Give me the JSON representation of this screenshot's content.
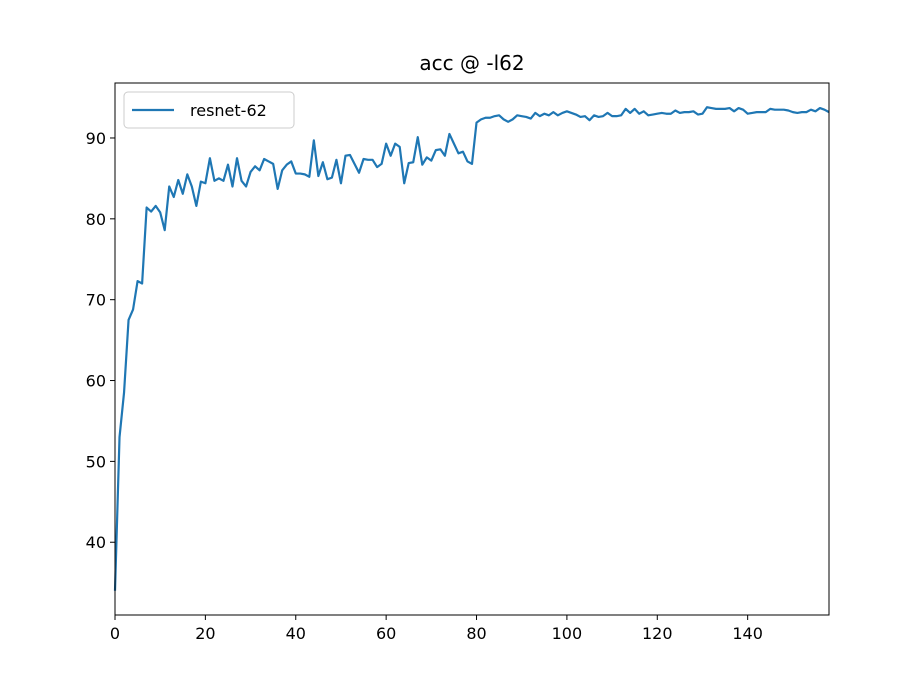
{
  "chart_data": {
    "type": "line",
    "title": "acc @ -l62",
    "xlabel": "",
    "ylabel": "",
    "xlim": [
      0,
      158
    ],
    "ylim": [
      31,
      96.8
    ],
    "xticks": [
      0,
      20,
      40,
      60,
      80,
      100,
      120,
      140
    ],
    "yticks": [
      40,
      50,
      60,
      70,
      80,
      90
    ],
    "grid": false,
    "legend_position": "upper-left",
    "series": [
      {
        "name": "resnet-62",
        "color": "#1f77b4",
        "x": [
          0,
          1,
          2,
          3,
          4,
          5,
          6,
          7,
          8,
          9,
          10,
          11,
          12,
          13,
          14,
          15,
          16,
          17,
          18,
          19,
          20,
          21,
          22,
          23,
          24,
          25,
          26,
          27,
          28,
          29,
          30,
          31,
          32,
          33,
          34,
          35,
          36,
          37,
          38,
          39,
          40,
          41,
          42,
          43,
          44,
          45,
          46,
          47,
          48,
          49,
          50,
          51,
          52,
          53,
          54,
          55,
          56,
          57,
          58,
          59,
          60,
          61,
          62,
          63,
          64,
          65,
          66,
          67,
          68,
          69,
          70,
          71,
          72,
          73,
          74,
          75,
          76,
          77,
          78,
          79,
          80,
          81,
          82,
          83,
          84,
          85,
          86,
          87,
          88,
          89,
          90,
          91,
          92,
          93,
          94,
          95,
          96,
          97,
          98,
          99,
          100,
          101,
          102,
          103,
          104,
          105,
          106,
          107,
          108,
          109,
          110,
          111,
          112,
          113,
          114,
          115,
          116,
          117,
          118,
          119,
          120,
          121,
          122,
          123,
          124,
          125,
          126,
          127,
          128,
          129,
          130,
          131,
          132,
          133,
          134,
          135,
          136,
          137,
          138,
          139,
          140,
          141,
          142,
          143,
          144,
          145,
          146,
          147,
          148,
          149,
          150,
          151,
          152,
          153,
          154,
          155,
          156,
          157,
          158
        ],
        "values": [
          34.0,
          53.0,
          58.5,
          67.5,
          68.8,
          72.3,
          72.0,
          81.4,
          80.9,
          81.6,
          80.8,
          78.6,
          84.0,
          82.7,
          84.8,
          83.1,
          85.5,
          84.0,
          81.6,
          84.6,
          84.4,
          87.5,
          84.7,
          85.0,
          84.7,
          86.7,
          84.0,
          87.5,
          84.7,
          84.0,
          85.8,
          86.5,
          86.0,
          87.4,
          87.1,
          86.8,
          83.7,
          86.0,
          86.7,
          87.1,
          85.6,
          85.6,
          85.5,
          85.2,
          89.7,
          85.3,
          87.0,
          84.9,
          85.1,
          87.3,
          84.4,
          87.8,
          87.9,
          86.8,
          85.7,
          87.4,
          87.3,
          87.3,
          86.4,
          86.8,
          89.3,
          87.8,
          89.3,
          88.9,
          84.4,
          86.9,
          87.0,
          90.1,
          86.7,
          87.6,
          87.2,
          88.5,
          88.6,
          87.8,
          90.5,
          89.3,
          88.1,
          88.3,
          87.1,
          86.8,
          91.9,
          92.3,
          92.5,
          92.5,
          92.7,
          92.8,
          92.3,
          92.0,
          92.3,
          92.8,
          92.7,
          92.6,
          92.4,
          93.1,
          92.7,
          93.0,
          92.8,
          93.2,
          92.8,
          93.1,
          93.3,
          93.1,
          92.9,
          92.6,
          92.7,
          92.2,
          92.8,
          92.6,
          92.7,
          93.1,
          92.7,
          92.7,
          92.8,
          93.6,
          93.1,
          93.6,
          93.0,
          93.3,
          92.8,
          92.9,
          93.0,
          93.1,
          93.0,
          93.0,
          93.4,
          93.1,
          93.2,
          93.2,
          93.3,
          92.9,
          93.0,
          93.8,
          93.7,
          93.6,
          93.6,
          93.6,
          93.7,
          93.3,
          93.7,
          93.5,
          93.0,
          93.1,
          93.2,
          93.2,
          93.2,
          93.6,
          93.5,
          93.5,
          93.5,
          93.4,
          93.2,
          93.1,
          93.2,
          93.2,
          93.5,
          93.3,
          93.7,
          93.5,
          93.2
        ]
      }
    ]
  }
}
